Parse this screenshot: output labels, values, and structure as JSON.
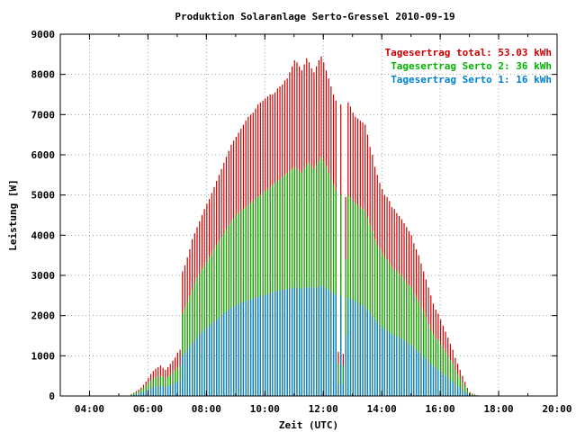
{
  "chart_data": {
    "type": "bar",
    "title": "Produktion Solaranlage Serto-Gressel 2010-09-19",
    "xlabel": "Zeit (UTC)",
    "ylabel": "Leistung [W]",
    "ylim": [
      0,
      9000
    ],
    "xlim": [
      "03:00",
      "20:00"
    ],
    "grid": true,
    "legend_position": "top-right",
    "y_ticks": [
      "0",
      "1000",
      "2000",
      "3000",
      "4000",
      "5000",
      "6000",
      "7000",
      "8000",
      "9000"
    ],
    "x_ticks": [
      "04:00",
      "06:00",
      "08:00",
      "10:00",
      "12:00",
      "14:00",
      "16:00",
      "18:00",
      "20:00"
    ],
    "sampling_interval_minutes": 5,
    "series": [
      {
        "name": "Tagesertrag total: 53.03 kWh",
        "color": "#cc0000",
        "x": [
          "05:25",
          "05:30",
          "05:35",
          "05:40",
          "05:45",
          "05:50",
          "05:55",
          "06:00",
          "06:05",
          "06:10",
          "06:15",
          "06:20",
          "06:25",
          "06:30",
          "06:35",
          "06:40",
          "06:45",
          "06:50",
          "06:55",
          "07:00",
          "07:05",
          "07:10",
          "07:15",
          "07:20",
          "07:25",
          "07:30",
          "07:35",
          "07:40",
          "07:45",
          "07:50",
          "07:55",
          "08:00",
          "08:05",
          "08:10",
          "08:15",
          "08:20",
          "08:25",
          "08:30",
          "08:35",
          "08:40",
          "08:45",
          "08:50",
          "08:55",
          "09:00",
          "09:05",
          "09:10",
          "09:15",
          "09:20",
          "09:25",
          "09:30",
          "09:35",
          "09:40",
          "09:45",
          "09:50",
          "09:55",
          "10:00",
          "10:05",
          "10:10",
          "10:15",
          "10:20",
          "10:25",
          "10:30",
          "10:35",
          "10:40",
          "10:45",
          "10:50",
          "10:55",
          "11:00",
          "11:05",
          "11:10",
          "11:15",
          "11:20",
          "11:25",
          "11:30",
          "11:35",
          "11:40",
          "11:45",
          "11:50",
          "11:55",
          "12:00",
          "12:05",
          "12:10",
          "12:15",
          "12:20",
          "12:25",
          "12:30",
          "12:35",
          "12:40",
          "12:45",
          "12:50",
          "12:55",
          "13:00",
          "13:05",
          "13:10",
          "13:15",
          "13:20",
          "13:25",
          "13:30",
          "13:35",
          "13:40",
          "13:45",
          "13:50",
          "13:55",
          "14:00",
          "14:05",
          "14:10",
          "14:15",
          "14:20",
          "14:25",
          "14:30",
          "14:35",
          "14:40",
          "14:45",
          "14:50",
          "14:55",
          "15:00",
          "15:05",
          "15:10",
          "15:15",
          "15:20",
          "15:25",
          "15:30",
          "15:35",
          "15:40",
          "15:45",
          "15:50",
          "15:55",
          "16:00",
          "16:05",
          "16:10",
          "16:15",
          "16:20",
          "16:25",
          "16:30",
          "16:35",
          "16:40",
          "16:45",
          "16:50",
          "16:55",
          "17:00",
          "17:05",
          "17:10",
          "17:15",
          "17:20"
        ],
        "values": [
          50,
          80,
          120,
          160,
          210,
          280,
          360,
          450,
          550,
          620,
          680,
          720,
          760,
          700,
          650,
          720,
          800,
          880,
          960,
          1080,
          1150,
          3100,
          3250,
          3450,
          3650,
          3900,
          4050,
          4200,
          4350,
          4500,
          4650,
          4780,
          4900,
          5050,
          5200,
          5350,
          5500,
          5650,
          5800,
          5950,
          6100,
          6250,
          6350,
          6450,
          6550,
          6650,
          6750,
          6850,
          6950,
          7000,
          7050,
          7150,
          7250,
          7300,
          7350,
          7400,
          7450,
          7500,
          7500,
          7550,
          7650,
          7700,
          7750,
          7850,
          7900,
          8050,
          8200,
          8350,
          8300,
          8200,
          8100,
          8250,
          8400,
          8300,
          8150,
          8050,
          8200,
          8350,
          8450,
          8300,
          8100,
          7900,
          7700,
          7500,
          7350,
          1100,
          7250,
          1050,
          4950,
          7300,
          7200,
          7050,
          6950,
          6900,
          6850,
          6800,
          6750,
          6500,
          6200,
          6000,
          5700,
          5500,
          5300,
          5150,
          5000,
          4950,
          4850,
          4700,
          4650,
          4550,
          4480,
          4400,
          4300,
          4200,
          4100,
          4000,
          3800,
          3650,
          3500,
          3300,
          3100,
          2900,
          2700,
          2500,
          2300,
          2150,
          2050,
          1900,
          1750,
          1600,
          1450,
          1300,
          1150,
          950,
          800,
          650,
          500,
          350,
          200,
          100,
          60,
          40,
          20,
          10
        ]
      },
      {
        "name": "Tagesertrag Serto 2: 36 kWh",
        "color": "#00b300",
        "x": [
          "05:25",
          "05:30",
          "05:35",
          "05:40",
          "05:45",
          "05:50",
          "05:55",
          "06:00",
          "06:05",
          "06:10",
          "06:15",
          "06:20",
          "06:25",
          "06:30",
          "06:35",
          "06:40",
          "06:45",
          "06:50",
          "06:55",
          "07:00",
          "07:05",
          "07:10",
          "07:15",
          "07:20",
          "07:25",
          "07:30",
          "07:35",
          "07:40",
          "07:45",
          "07:50",
          "07:55",
          "08:00",
          "08:05",
          "08:10",
          "08:15",
          "08:20",
          "08:25",
          "08:30",
          "08:35",
          "08:40",
          "08:45",
          "08:50",
          "08:55",
          "09:00",
          "09:05",
          "09:10",
          "09:15",
          "09:20",
          "09:25",
          "09:30",
          "09:35",
          "09:40",
          "09:45",
          "09:50",
          "09:55",
          "10:00",
          "10:05",
          "10:10",
          "10:15",
          "10:20",
          "10:25",
          "10:30",
          "10:35",
          "10:40",
          "10:45",
          "10:50",
          "10:55",
          "11:00",
          "11:05",
          "11:10",
          "11:15",
          "11:20",
          "11:25",
          "11:30",
          "11:35",
          "11:40",
          "11:45",
          "11:50",
          "11:55",
          "12:00",
          "12:05",
          "12:10",
          "12:15",
          "12:20",
          "12:25",
          "12:30",
          "12:35",
          "12:40",
          "12:45",
          "12:50",
          "12:55",
          "13:00",
          "13:05",
          "13:10",
          "13:15",
          "13:20",
          "13:25",
          "13:30",
          "13:35",
          "13:40",
          "13:45",
          "13:50",
          "13:55",
          "14:00",
          "14:05",
          "14:10",
          "14:15",
          "14:20",
          "14:25",
          "14:30",
          "14:35",
          "14:40",
          "14:45",
          "14:50",
          "14:55",
          "15:00",
          "15:05",
          "15:10",
          "15:15",
          "15:20",
          "15:25",
          "15:30",
          "15:35",
          "15:40",
          "15:45",
          "15:50",
          "15:55",
          "16:00",
          "16:05",
          "16:10",
          "16:15",
          "16:20",
          "16:25",
          "16:30",
          "16:35",
          "16:40",
          "16:45",
          "16:50",
          "16:55",
          "17:00",
          "17:05",
          "17:10",
          "17:15",
          "17:20"
        ],
        "values": [
          40,
          60,
          90,
          120,
          160,
          210,
          260,
          320,
          380,
          420,
          460,
          480,
          500,
          470,
          440,
          480,
          530,
          580,
          640,
          700,
          760,
          2050,
          2200,
          2350,
          2500,
          2650,
          2800,
          2950,
          3050,
          3150,
          3250,
          3350,
          3450,
          3550,
          3650,
          3750,
          3850,
          3950,
          4050,
          4150,
          4250,
          4350,
          4420,
          4500,
          4550,
          4600,
          4650,
          4700,
          4750,
          4800,
          4850,
          4900,
          4950,
          5000,
          5050,
          5100,
          5150,
          5200,
          5250,
          5300,
          5350,
          5400,
          5450,
          5500,
          5550,
          5600,
          5650,
          5700,
          5650,
          5600,
          5550,
          5650,
          5750,
          5800,
          5700,
          5650,
          5750,
          5850,
          5950,
          5850,
          5700,
          5550,
          5400,
          5250,
          5100,
          800,
          5000,
          750,
          3400,
          5000,
          4950,
          4850,
          4800,
          4750,
          4700,
          4650,
          4600,
          4450,
          4250,
          4100,
          3900,
          3750,
          3650,
          3550,
          3450,
          3400,
          3300,
          3200,
          3150,
          3100,
          3050,
          3000,
          2900,
          2800,
          2750,
          2700,
          2550,
          2450,
          2350,
          2200,
          2100,
          1950,
          1800,
          1650,
          1550,
          1450,
          1400,
          1300,
          1200,
          1100,
          1000,
          900,
          800,
          650,
          550,
          450,
          350,
          250,
          150,
          70,
          40,
          30,
          15,
          8
        ]
      },
      {
        "name": "Tagesertrag Serto 1: 16 kWh",
        "color": "#0080d0",
        "x": [
          "05:25",
          "05:30",
          "05:35",
          "05:40",
          "05:45",
          "05:50",
          "05:55",
          "06:00",
          "06:05",
          "06:10",
          "06:15",
          "06:20",
          "06:25",
          "06:30",
          "06:35",
          "06:40",
          "06:45",
          "06:50",
          "06:55",
          "07:00",
          "07:05",
          "07:10",
          "07:15",
          "07:20",
          "07:25",
          "07:30",
          "07:35",
          "07:40",
          "07:45",
          "07:50",
          "07:55",
          "08:00",
          "08:05",
          "08:10",
          "08:15",
          "08:20",
          "08:25",
          "08:30",
          "08:35",
          "08:40",
          "08:45",
          "08:50",
          "08:55",
          "09:00",
          "09:05",
          "09:10",
          "09:15",
          "09:20",
          "09:25",
          "09:30",
          "09:35",
          "09:40",
          "09:45",
          "09:50",
          "09:55",
          "10:00",
          "10:05",
          "10:10",
          "10:15",
          "10:20",
          "10:25",
          "10:30",
          "10:35",
          "10:40",
          "10:45",
          "10:50",
          "10:55",
          "11:00",
          "11:05",
          "11:10",
          "11:15",
          "11:20",
          "11:25",
          "11:30",
          "11:35",
          "11:40",
          "11:45",
          "11:50",
          "11:55",
          "12:00",
          "12:05",
          "12:10",
          "12:15",
          "12:20",
          "12:25",
          "12:30",
          "12:35",
          "12:40",
          "12:45",
          "12:50",
          "12:55",
          "13:00",
          "13:05",
          "13:10",
          "13:15",
          "13:20",
          "13:25",
          "13:30",
          "13:35",
          "13:40",
          "13:45",
          "13:50",
          "13:55",
          "14:00",
          "14:05",
          "14:10",
          "14:15",
          "14:20",
          "14:25",
          "14:30",
          "14:35",
          "14:40",
          "14:45",
          "14:50",
          "14:55",
          "15:00",
          "15:05",
          "15:10",
          "15:15",
          "15:20",
          "15:25",
          "15:30",
          "15:35",
          "15:40",
          "15:45",
          "15:50",
          "15:55",
          "16:00",
          "16:05",
          "16:10",
          "16:15",
          "16:20",
          "16:25",
          "16:30",
          "16:35",
          "16:40",
          "16:45",
          "16:50",
          "16:55",
          "17:00",
          "17:05",
          "17:10",
          "17:15",
          "17:20"
        ],
        "values": [
          20,
          30,
          50,
          60,
          80,
          100,
          130,
          160,
          190,
          210,
          230,
          240,
          250,
          235,
          220,
          240,
          265,
          290,
          320,
          350,
          380,
          1000,
          1080,
          1150,
          1220,
          1300,
          1380,
          1450,
          1520,
          1580,
          1650,
          1700,
          1750,
          1800,
          1850,
          1900,
          1950,
          2000,
          2050,
          2100,
          2150,
          2200,
          2230,
          2260,
          2290,
          2320,
          2340,
          2360,
          2380,
          2400,
          2420,
          2440,
          2460,
          2480,
          2500,
          2520,
          2540,
          2560,
          2580,
          2600,
          2610,
          2620,
          2640,
          2650,
          2660,
          2670,
          2680,
          2700,
          2690,
          2680,
          2660,
          2680,
          2700,
          2720,
          2700,
          2680,
          2700,
          2720,
          2750,
          2720,
          2680,
          2640,
          2600,
          2560,
          2520,
          300,
          2480,
          280,
          1500,
          2450,
          2420,
          2380,
          2350,
          2320,
          2280,
          2250,
          2220,
          2150,
          2050,
          1980,
          1900,
          1820,
          1760,
          1700,
          1650,
          1620,
          1580,
          1540,
          1500,
          1480,
          1450,
          1420,
          1380,
          1340,
          1300,
          1260,
          1200,
          1150,
          1100,
          1040,
          980,
          920,
          860,
          800,
          740,
          690,
          650,
          600,
          550,
          500,
          450,
          400,
          350,
          300,
          250,
          200,
          150,
          100,
          60,
          30,
          20,
          15,
          8,
          4
        ]
      }
    ]
  }
}
